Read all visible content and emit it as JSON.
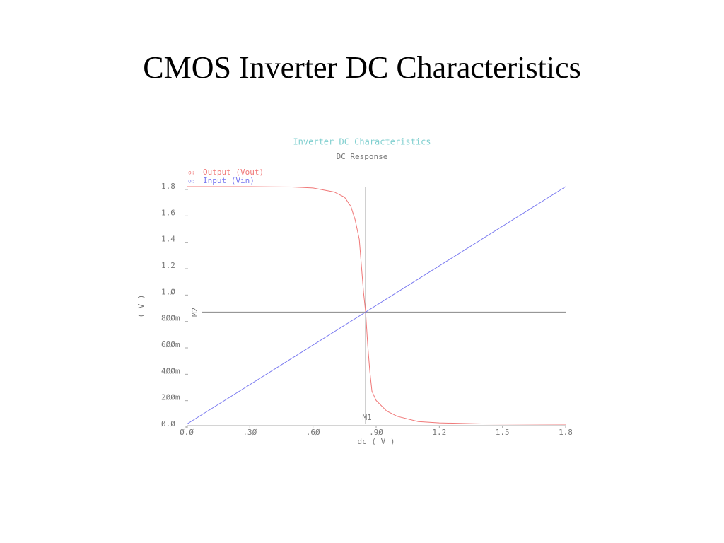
{
  "title": "CMOS Inverter DC Characteristics",
  "chart_data": {
    "type": "line",
    "title": "Inverter DC Characteristics",
    "subtitle": "DC Response",
    "x_label": "dc ( V )",
    "y_label": "( V )",
    "xlim": [
      0,
      1.8
    ],
    "ylim": [
      0,
      1.8
    ],
    "xticks": [
      {
        "value": 0,
        "label": "Ø.Ø"
      },
      {
        "value": 0.3,
        "label": ".3Ø"
      },
      {
        "value": 0.6,
        "label": ".6Ø"
      },
      {
        "value": 0.9,
        "label": ".9Ø"
      },
      1.2,
      1.5,
      1.8
    ],
    "yticks": [
      {
        "value": 0,
        "label": "Ø.Ø"
      },
      {
        "value": 0.2,
        "label": "2ØØm"
      },
      {
        "value": 0.4,
        "label": "4ØØm"
      },
      {
        "value": 0.6,
        "label": "6ØØm"
      },
      {
        "value": 0.8,
        "label": "8ØØm"
      },
      {
        "value": 1.0,
        "label": "1.Ø"
      },
      1.2,
      1.4,
      1.6,
      1.8
    ],
    "series": [
      {
        "name": "Output (Vout)",
        "color": "#f07878",
        "x": [
          0,
          0.3,
          0.5,
          0.6,
          0.7,
          0.75,
          0.78,
          0.8,
          0.82,
          0.83,
          0.84,
          0.85,
          0.86,
          0.87,
          0.88,
          0.9,
          0.95,
          1.0,
          1.1,
          1.2,
          1.4,
          1.8
        ],
        "values": [
          1.8,
          1.8,
          1.797,
          1.79,
          1.76,
          1.72,
          1.65,
          1.55,
          1.4,
          1.2,
          1.0,
          0.85,
          0.6,
          0.4,
          0.25,
          0.18,
          0.1,
          0.06,
          0.02,
          0.01,
          0.003,
          0
        ]
      },
      {
        "name": "Input (Vin)",
        "color": "#7878f0",
        "x": [
          0,
          1.8
        ],
        "values": [
          0,
          1.8
        ]
      }
    ],
    "markers": [
      {
        "label": "M1",
        "x": 0.85
      },
      {
        "label": "M2",
        "y": 0.85
      }
    ]
  }
}
